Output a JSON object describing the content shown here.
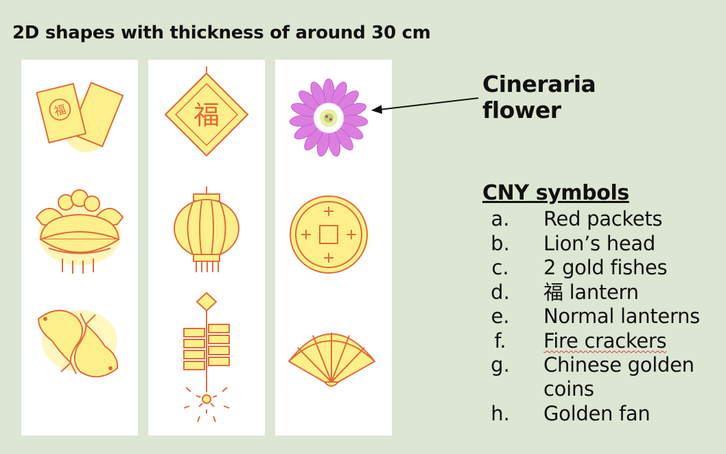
{
  "title": "2D shapes with thickness of around 30 cm",
  "flower_label": [
    "Cineraria",
    "flower"
  ],
  "symbols": {
    "heading": "CNY symbols",
    "items": [
      {
        "marker": "a.",
        "label": "Red packets"
      },
      {
        "marker": "b.",
        "label": "Lion’s head"
      },
      {
        "marker": "c.",
        "label": "2 gold fishes"
      },
      {
        "marker": "d.",
        "label": "福 lantern"
      },
      {
        "marker": "e.",
        "label": "Normal lanterns"
      },
      {
        "marker": "f.",
        "label": "Fire crackers"
      },
      {
        "marker": "g.",
        "label": "Chinese golden coins"
      },
      {
        "marker": "h.",
        "label": "Golden fan"
      }
    ]
  },
  "artwork": {
    "fu_character": "福",
    "stroke_color": "#e06a3a",
    "fill_color": "#fdf08a",
    "flower_color": "#dc7ee0",
    "icons": [
      "red-packets-icon",
      "fu-diamond-icon",
      "cineraria-flower-icon",
      "lion-head-icon",
      "lantern-icon",
      "golden-coin-icon",
      "fishes-icon",
      "firecrackers-icon",
      "golden-fan-icon"
    ]
  }
}
